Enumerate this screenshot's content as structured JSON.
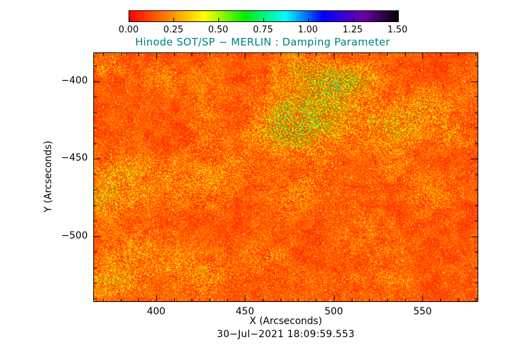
{
  "chart_data": {
    "type": "heatmap",
    "title": "Hinode SOT/SP − MERLIN : Damping Parameter",
    "title_color": "#008080",
    "xlabel": "X (Arcseconds)",
    "ylabel": "Y (Arcseconds)",
    "timestamp": "30−Jul−2021 18:09:59.553",
    "x_range": [
      365,
      581
    ],
    "y_range": [
      -542,
      -382
    ],
    "x_tick_values": [
      400,
      450,
      500,
      550
    ],
    "x_tick_labels": [
      "400",
      "450",
      "500",
      "550"
    ],
    "y_tick_values": [
      -400,
      -450,
      -500
    ],
    "y_tick_labels": [
      "−400",
      "−450",
      "−500"
    ],
    "minor_tick_step": 10,
    "value_range": [
      0,
      1.5
    ],
    "colorbar": {
      "min": 0,
      "max": 1.5,
      "tick_labels": [
        "0.00",
        "0.25",
        "0.50",
        "0.75",
        "1.00",
        "1.25",
        "1.50"
      ],
      "stops": [
        [
          0.0,
          "#ff0000"
        ],
        [
          0.14,
          "#ff8000"
        ],
        [
          0.28,
          "#ffff00"
        ],
        [
          0.43,
          "#00ee00"
        ],
        [
          0.58,
          "#00ffff"
        ],
        [
          0.72,
          "#0000ff"
        ],
        [
          0.87,
          "#6a00a8"
        ],
        [
          1.0,
          "#000000"
        ]
      ]
    },
    "field_description": "Granular solar damping-parameter map: predominantly red/orange values ~0.05-0.3 with speckled yellow-green patches up to ~0.7 (largest cluster top-centre, bands mid-left and lower-left) plus sparse white saturated pixels.",
    "generation": {
      "seed": 7,
      "base": 0.05,
      "mid_amp": 0.07,
      "speckle_amp": 0.16,
      "green_gain": 0.9,
      "lowfreq_gain": 0.3,
      "white_speck_prob": 0.007,
      "blobs": [
        {
          "x": 0.57,
          "y": 0.25,
          "r": 0.09,
          "a": 0.5
        },
        {
          "x": 0.5,
          "y": 0.32,
          "r": 0.06,
          "a": 0.35
        },
        {
          "x": 0.62,
          "y": 0.12,
          "r": 0.05,
          "a": 0.4
        },
        {
          "x": 0.55,
          "y": 0.05,
          "r": 0.04,
          "a": 0.3
        },
        {
          "x": 0.7,
          "y": 0.1,
          "r": 0.05,
          "a": 0.3
        },
        {
          "x": 0.78,
          "y": 0.3,
          "r": 0.06,
          "a": 0.35
        },
        {
          "x": 0.86,
          "y": 0.22,
          "r": 0.05,
          "a": 0.25
        },
        {
          "x": 0.94,
          "y": 0.33,
          "r": 0.04,
          "a": 0.25
        },
        {
          "x": 0.18,
          "y": 0.1,
          "r": 0.04,
          "a": 0.25
        },
        {
          "x": 0.03,
          "y": 0.05,
          "r": 0.03,
          "a": 0.3
        },
        {
          "x": 0.08,
          "y": 0.5,
          "r": 0.07,
          "a": 0.3
        },
        {
          "x": 0.02,
          "y": 0.6,
          "r": 0.05,
          "a": 0.3
        },
        {
          "x": 0.3,
          "y": 0.5,
          "r": 0.08,
          "a": 0.22
        },
        {
          "x": 0.55,
          "y": 0.55,
          "r": 0.06,
          "a": 0.18
        },
        {
          "x": 0.1,
          "y": 0.8,
          "r": 0.06,
          "a": 0.28
        },
        {
          "x": 0.03,
          "y": 0.92,
          "r": 0.05,
          "a": 0.35
        },
        {
          "x": 0.25,
          "y": 0.87,
          "r": 0.06,
          "a": 0.25
        },
        {
          "x": 0.45,
          "y": 0.82,
          "r": 0.05,
          "a": 0.18
        },
        {
          "x": 0.88,
          "y": 0.55,
          "r": 0.05,
          "a": 0.18
        },
        {
          "x": 0.7,
          "y": 0.75,
          "r": 0.05,
          "a": 0.15
        }
      ]
    }
  }
}
